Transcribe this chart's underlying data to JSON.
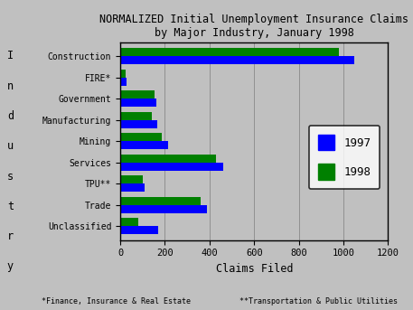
{
  "title_line1": "NORMALIZED Initial Unemployment Insurance Claims",
  "title_line2": "by Major Industry, January 1998",
  "categories": [
    "Construction",
    "FIRE*",
    "Government",
    "Manufacturing",
    "Mining",
    "Services",
    "TPU**",
    "Trade",
    "Unclassified"
  ],
  "values_1997": [
    1050,
    30,
    160,
    165,
    215,
    460,
    110,
    390,
    170
  ],
  "values_1998": [
    980,
    25,
    155,
    140,
    185,
    430,
    100,
    360,
    80
  ],
  "color_1997": "#0000FF",
  "color_1998": "#008000",
  "xlabel": "Claims Filed",
  "ylabel_chars": [
    "I",
    "n",
    "d",
    "u",
    "s",
    "t",
    "r",
    "y"
  ],
  "xlim": [
    0,
    1200
  ],
  "xticks": [
    0,
    200,
    400,
    600,
    800,
    1000,
    1200
  ],
  "background_color": "#c0c0c0",
  "plot_bg_color": "#c0c0c0",
  "footnote1": "*Finance, Insurance & Real Estate",
  "footnote2": "**Transportation & Public Utilities",
  "legend_labels": [
    "1997",
    "1998"
  ],
  "bar_height": 0.38,
  "grid_color": "#909090"
}
